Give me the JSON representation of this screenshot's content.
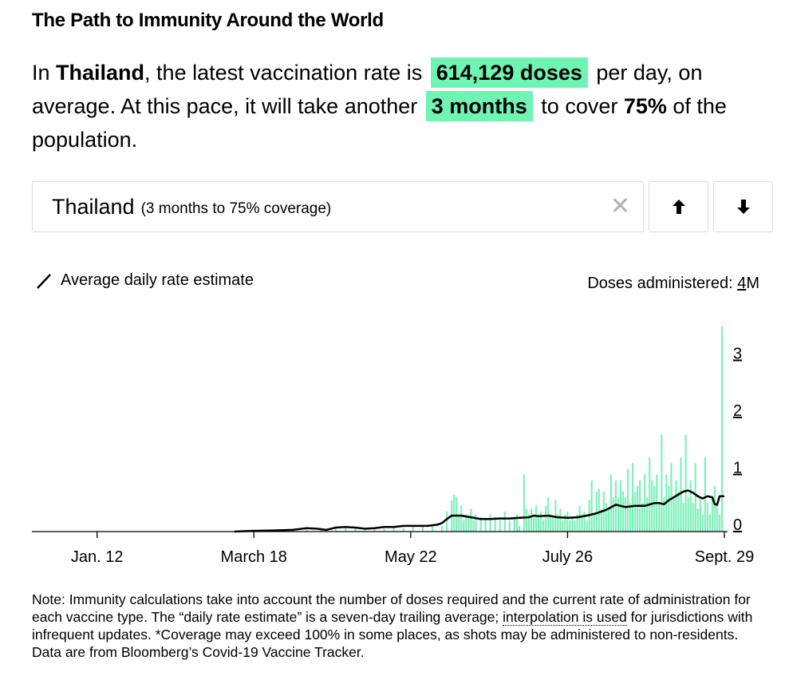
{
  "title": "The Path to Immunity Around the World",
  "lede": {
    "p1": "In ",
    "country": "Thailand",
    "p2": ", the latest vaccination rate is ",
    "rate": "614,129 doses",
    "p3": " per day, on average. At this pace, it will take another ",
    "time": "3 months",
    "p4": " to cover ",
    "coverage": "75%",
    "p5": " of the population."
  },
  "selector": {
    "name": "Thailand",
    "sub": "(3 months to 75% coverage)",
    "clear": "✕",
    "up_icon": "arrow-up-icon",
    "down_icon": "arrow-down-icon"
  },
  "legend": {
    "line_label": "Average daily rate estimate"
  },
  "doses_label": {
    "prefix": "Doses administered: ",
    "unit_num": "4",
    "unit_suffix": "M"
  },
  "colors": {
    "bar": "#7ff0bb",
    "highlight": "#6ff5b3",
    "line": "#000000",
    "axis": "#000000"
  },
  "chart_data": {
    "type": "bar",
    "title": "",
    "ylabel": "Doses administered (M)",
    "ylim": [
      0,
      4
    ],
    "yticks": [
      "0",
      "1",
      "2",
      "3"
    ],
    "y_unit_label": "4M",
    "x_start": "Dec. 16",
    "x_end": "Sept. 29",
    "xticks": [
      {
        "label": "Jan. 12",
        "day": 27
      },
      {
        "label": "March 18",
        "day": 92
      },
      {
        "label": "May 22",
        "day": 157
      },
      {
        "label": "July 26",
        "day": 222
      },
      {
        "label": "Sept. 29",
        "day": 287
      }
    ],
    "series": [
      {
        "name": "Doses administered",
        "kind": "bars",
        "points": [
          [
            84,
            0.01
          ],
          [
            92,
            0.01
          ],
          [
            100,
            0.02
          ],
          [
            108,
            0.02
          ],
          [
            114,
            0.03
          ],
          [
            120,
            0.04
          ],
          [
            126,
            0.05
          ],
          [
            130,
            0.06
          ],
          [
            134,
            0.09
          ],
          [
            138,
            0.05
          ],
          [
            142,
            0.06
          ],
          [
            146,
            0.05
          ],
          [
            150,
            0.08
          ],
          [
            154,
            0.06
          ],
          [
            158,
            0.1
          ],
          [
            162,
            0.12
          ],
          [
            166,
            0.13
          ],
          [
            170,
            0.1
          ],
          [
            172,
            0.35
          ],
          [
            174,
            0.55
          ],
          [
            175,
            0.65
          ],
          [
            176,
            0.6
          ],
          [
            177,
            0.3
          ],
          [
            178,
            0.45
          ],
          [
            179,
            0.2
          ],
          [
            180,
            0.3
          ],
          [
            181,
            0.25
          ],
          [
            182,
            0.4
          ],
          [
            183,
            0.2
          ],
          [
            184,
            0.3
          ],
          [
            186,
            0.25
          ],
          [
            188,
            0.2
          ],
          [
            190,
            0.3
          ],
          [
            192,
            0.25
          ],
          [
            194,
            0.2
          ],
          [
            196,
            0.35
          ],
          [
            198,
            0.2
          ],
          [
            200,
            0.25
          ],
          [
            201,
            0.3
          ],
          [
            202,
            0.1
          ],
          [
            204,
            1.0
          ],
          [
            205,
            0.4
          ],
          [
            206,
            0.3
          ],
          [
            207,
            0.4
          ],
          [
            208,
            0.25
          ],
          [
            209,
            0.45
          ],
          [
            210,
            0.3
          ],
          [
            211,
            0.35
          ],
          [
            212,
            0.2
          ],
          [
            213,
            0.45
          ],
          [
            214,
            0.6
          ],
          [
            215,
            0.3
          ],
          [
            216,
            0.25
          ],
          [
            217,
            0.55
          ],
          [
            218,
            0.3
          ],
          [
            219,
            0.4
          ],
          [
            220,
            0.2
          ],
          [
            221,
            0.3
          ],
          [
            222,
            0.35
          ],
          [
            223,
            0.2
          ],
          [
            224,
            0.25
          ],
          [
            225,
            0.2
          ],
          [
            226,
            0.3
          ],
          [
            227,
            0.45
          ],
          [
            228,
            0.3
          ],
          [
            229,
            0.35
          ],
          [
            230,
            0.2
          ],
          [
            231,
            0.55
          ],
          [
            232,
            0.9
          ],
          [
            233,
            0.3
          ],
          [
            234,
            0.7
          ],
          [
            235,
            0.75
          ],
          [
            236,
            0.4
          ],
          [
            237,
            0.7
          ],
          [
            238,
            0.5
          ],
          [
            239,
            0.4
          ],
          [
            240,
            1.0
          ],
          [
            241,
            0.6
          ],
          [
            242,
            0.9
          ],
          [
            243,
            0.6
          ],
          [
            244,
            0.9
          ],
          [
            245,
            0.7
          ],
          [
            246,
            0.6
          ],
          [
            247,
            1.1
          ],
          [
            248,
            0.5
          ],
          [
            249,
            1.2
          ],
          [
            250,
            0.7
          ],
          [
            251,
            0.8
          ],
          [
            252,
            0.9
          ],
          [
            253,
            0.5
          ],
          [
            254,
            1.0
          ],
          [
            255,
            0.6
          ],
          [
            256,
            1.3
          ],
          [
            257,
            0.9
          ],
          [
            258,
            0.8
          ],
          [
            259,
            1.0
          ],
          [
            260,
            0.5
          ],
          [
            261,
            1.7
          ],
          [
            262,
            0.6
          ],
          [
            263,
            1.0
          ],
          [
            264,
            0.8
          ],
          [
            265,
            1.2
          ],
          [
            266,
            0.6
          ],
          [
            267,
            0.9
          ],
          [
            268,
            0.7
          ],
          [
            269,
            1.3
          ],
          [
            270,
            0.5
          ],
          [
            271,
            1.7
          ],
          [
            272,
            0.6
          ],
          [
            273,
            0.9
          ],
          [
            274,
            0.5
          ],
          [
            275,
            1.2
          ],
          [
            276,
            0.4
          ],
          [
            277,
            0.6
          ],
          [
            278,
            0.3
          ],
          [
            279,
            1.3
          ],
          [
            280,
            0.5
          ],
          [
            281,
            0.3
          ],
          [
            282,
            0.6
          ],
          [
            283,
            0.8
          ],
          [
            284,
            0.5
          ],
          [
            285,
            0.3
          ],
          [
            286,
            3.6
          ]
        ]
      },
      {
        "name": "Average daily rate estimate",
        "kind": "line",
        "points": [
          [
            84,
            0.0
          ],
          [
            90,
            0.01
          ],
          [
            100,
            0.02
          ],
          [
            108,
            0.03
          ],
          [
            114,
            0.06
          ],
          [
            118,
            0.05
          ],
          [
            122,
            0.03
          ],
          [
            126,
            0.07
          ],
          [
            130,
            0.08
          ],
          [
            134,
            0.07
          ],
          [
            138,
            0.05
          ],
          [
            142,
            0.06
          ],
          [
            146,
            0.08
          ],
          [
            150,
            0.08
          ],
          [
            154,
            0.1
          ],
          [
            158,
            0.1
          ],
          [
            164,
            0.1
          ],
          [
            168,
            0.12
          ],
          [
            170,
            0.15
          ],
          [
            172,
            0.22
          ],
          [
            174,
            0.28
          ],
          [
            178,
            0.28
          ],
          [
            182,
            0.25
          ],
          [
            186,
            0.22
          ],
          [
            190,
            0.22
          ],
          [
            194,
            0.23
          ],
          [
            198,
            0.23
          ],
          [
            202,
            0.24
          ],
          [
            206,
            0.25
          ],
          [
            208,
            0.28
          ],
          [
            210,
            0.27
          ],
          [
            214,
            0.28
          ],
          [
            218,
            0.25
          ],
          [
            222,
            0.24
          ],
          [
            226,
            0.25
          ],
          [
            230,
            0.28
          ],
          [
            234,
            0.32
          ],
          [
            238,
            0.38
          ],
          [
            242,
            0.47
          ],
          [
            246,
            0.43
          ],
          [
            250,
            0.45
          ],
          [
            254,
            0.45
          ],
          [
            258,
            0.5
          ],
          [
            260,
            0.5
          ],
          [
            262,
            0.48
          ],
          [
            264,
            0.55
          ],
          [
            266,
            0.6
          ],
          [
            268,
            0.65
          ],
          [
            270,
            0.7
          ],
          [
            272,
            0.72
          ],
          [
            274,
            0.68
          ],
          [
            276,
            0.62
          ],
          [
            278,
            0.58
          ],
          [
            280,
            0.62
          ],
          [
            282,
            0.6
          ],
          [
            283,
            0.48
          ],
          [
            284,
            0.47
          ],
          [
            285,
            0.62
          ],
          [
            287,
            0.62
          ]
        ]
      }
    ]
  },
  "note": {
    "text1": "Note: Immunity calculations take into account the number of doses required and the current rate of administration for each vaccine type. The “daily rate estimate” is a seven-day trailing average; ",
    "link": "interpolation is used",
    "text2": " for jurisdictions with infrequent updates. *Coverage may exceed 100% in some places, as shots may be administered to non-residents. Data are from Bloomberg’s Covid-19 Vaccine Tracker."
  }
}
